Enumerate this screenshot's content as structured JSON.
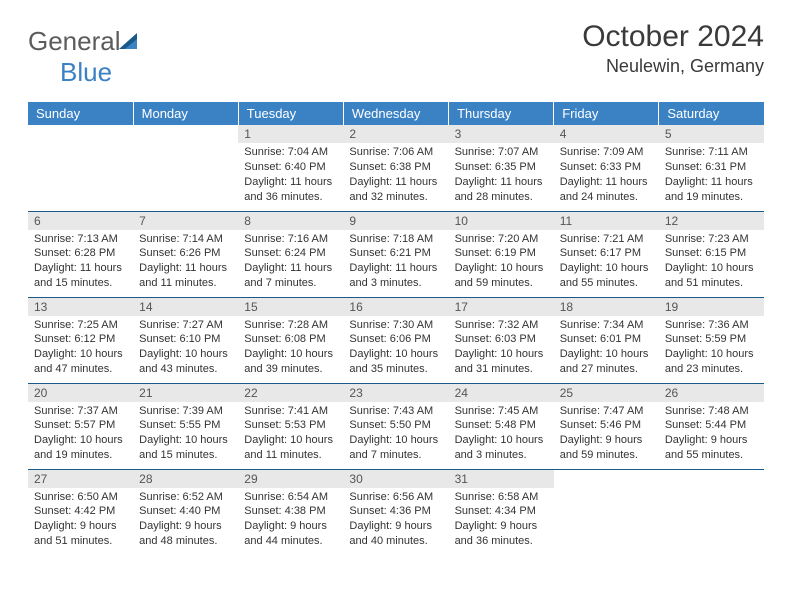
{
  "brand": {
    "part1": "General",
    "part2": "Blue"
  },
  "title": "October 2024",
  "location": "Neulewin, Germany",
  "colors": {
    "header_bg": "#3b82c4",
    "header_fg": "#ffffff",
    "daynum_bg": "#e8e8e8",
    "row_divider": "#1a5a8a",
    "text": "#333333"
  },
  "day_headers": [
    "Sunday",
    "Monday",
    "Tuesday",
    "Wednesday",
    "Thursday",
    "Friday",
    "Saturday"
  ],
  "weeks": [
    [
      {
        "n": "",
        "sunrise": "",
        "sunset": "",
        "daylight": ""
      },
      {
        "n": "",
        "sunrise": "",
        "sunset": "",
        "daylight": ""
      },
      {
        "n": "1",
        "sunrise": "Sunrise: 7:04 AM",
        "sunset": "Sunset: 6:40 PM",
        "daylight": "Daylight: 11 hours and 36 minutes."
      },
      {
        "n": "2",
        "sunrise": "Sunrise: 7:06 AM",
        "sunset": "Sunset: 6:38 PM",
        "daylight": "Daylight: 11 hours and 32 minutes."
      },
      {
        "n": "3",
        "sunrise": "Sunrise: 7:07 AM",
        "sunset": "Sunset: 6:35 PM",
        "daylight": "Daylight: 11 hours and 28 minutes."
      },
      {
        "n": "4",
        "sunrise": "Sunrise: 7:09 AM",
        "sunset": "Sunset: 6:33 PM",
        "daylight": "Daylight: 11 hours and 24 minutes."
      },
      {
        "n": "5",
        "sunrise": "Sunrise: 7:11 AM",
        "sunset": "Sunset: 6:31 PM",
        "daylight": "Daylight: 11 hours and 19 minutes."
      }
    ],
    [
      {
        "n": "6",
        "sunrise": "Sunrise: 7:13 AM",
        "sunset": "Sunset: 6:28 PM",
        "daylight": "Daylight: 11 hours and 15 minutes."
      },
      {
        "n": "7",
        "sunrise": "Sunrise: 7:14 AM",
        "sunset": "Sunset: 6:26 PM",
        "daylight": "Daylight: 11 hours and 11 minutes."
      },
      {
        "n": "8",
        "sunrise": "Sunrise: 7:16 AM",
        "sunset": "Sunset: 6:24 PM",
        "daylight": "Daylight: 11 hours and 7 minutes."
      },
      {
        "n": "9",
        "sunrise": "Sunrise: 7:18 AM",
        "sunset": "Sunset: 6:21 PM",
        "daylight": "Daylight: 11 hours and 3 minutes."
      },
      {
        "n": "10",
        "sunrise": "Sunrise: 7:20 AM",
        "sunset": "Sunset: 6:19 PM",
        "daylight": "Daylight: 10 hours and 59 minutes."
      },
      {
        "n": "11",
        "sunrise": "Sunrise: 7:21 AM",
        "sunset": "Sunset: 6:17 PM",
        "daylight": "Daylight: 10 hours and 55 minutes."
      },
      {
        "n": "12",
        "sunrise": "Sunrise: 7:23 AM",
        "sunset": "Sunset: 6:15 PM",
        "daylight": "Daylight: 10 hours and 51 minutes."
      }
    ],
    [
      {
        "n": "13",
        "sunrise": "Sunrise: 7:25 AM",
        "sunset": "Sunset: 6:12 PM",
        "daylight": "Daylight: 10 hours and 47 minutes."
      },
      {
        "n": "14",
        "sunrise": "Sunrise: 7:27 AM",
        "sunset": "Sunset: 6:10 PM",
        "daylight": "Daylight: 10 hours and 43 minutes."
      },
      {
        "n": "15",
        "sunrise": "Sunrise: 7:28 AM",
        "sunset": "Sunset: 6:08 PM",
        "daylight": "Daylight: 10 hours and 39 minutes."
      },
      {
        "n": "16",
        "sunrise": "Sunrise: 7:30 AM",
        "sunset": "Sunset: 6:06 PM",
        "daylight": "Daylight: 10 hours and 35 minutes."
      },
      {
        "n": "17",
        "sunrise": "Sunrise: 7:32 AM",
        "sunset": "Sunset: 6:03 PM",
        "daylight": "Daylight: 10 hours and 31 minutes."
      },
      {
        "n": "18",
        "sunrise": "Sunrise: 7:34 AM",
        "sunset": "Sunset: 6:01 PM",
        "daylight": "Daylight: 10 hours and 27 minutes."
      },
      {
        "n": "19",
        "sunrise": "Sunrise: 7:36 AM",
        "sunset": "Sunset: 5:59 PM",
        "daylight": "Daylight: 10 hours and 23 minutes."
      }
    ],
    [
      {
        "n": "20",
        "sunrise": "Sunrise: 7:37 AM",
        "sunset": "Sunset: 5:57 PM",
        "daylight": "Daylight: 10 hours and 19 minutes."
      },
      {
        "n": "21",
        "sunrise": "Sunrise: 7:39 AM",
        "sunset": "Sunset: 5:55 PM",
        "daylight": "Daylight: 10 hours and 15 minutes."
      },
      {
        "n": "22",
        "sunrise": "Sunrise: 7:41 AM",
        "sunset": "Sunset: 5:53 PM",
        "daylight": "Daylight: 10 hours and 11 minutes."
      },
      {
        "n": "23",
        "sunrise": "Sunrise: 7:43 AM",
        "sunset": "Sunset: 5:50 PM",
        "daylight": "Daylight: 10 hours and 7 minutes."
      },
      {
        "n": "24",
        "sunrise": "Sunrise: 7:45 AM",
        "sunset": "Sunset: 5:48 PM",
        "daylight": "Daylight: 10 hours and 3 minutes."
      },
      {
        "n": "25",
        "sunrise": "Sunrise: 7:47 AM",
        "sunset": "Sunset: 5:46 PM",
        "daylight": "Daylight: 9 hours and 59 minutes."
      },
      {
        "n": "26",
        "sunrise": "Sunrise: 7:48 AM",
        "sunset": "Sunset: 5:44 PM",
        "daylight": "Daylight: 9 hours and 55 minutes."
      }
    ],
    [
      {
        "n": "27",
        "sunrise": "Sunrise: 6:50 AM",
        "sunset": "Sunset: 4:42 PM",
        "daylight": "Daylight: 9 hours and 51 minutes."
      },
      {
        "n": "28",
        "sunrise": "Sunrise: 6:52 AM",
        "sunset": "Sunset: 4:40 PM",
        "daylight": "Daylight: 9 hours and 48 minutes."
      },
      {
        "n": "29",
        "sunrise": "Sunrise: 6:54 AM",
        "sunset": "Sunset: 4:38 PM",
        "daylight": "Daylight: 9 hours and 44 minutes."
      },
      {
        "n": "30",
        "sunrise": "Sunrise: 6:56 AM",
        "sunset": "Sunset: 4:36 PM",
        "daylight": "Daylight: 9 hours and 40 minutes."
      },
      {
        "n": "31",
        "sunrise": "Sunrise: 6:58 AM",
        "sunset": "Sunset: 4:34 PM",
        "daylight": "Daylight: 9 hours and 36 minutes."
      },
      {
        "n": "",
        "sunrise": "",
        "sunset": "",
        "daylight": ""
      },
      {
        "n": "",
        "sunrise": "",
        "sunset": "",
        "daylight": ""
      }
    ]
  ]
}
